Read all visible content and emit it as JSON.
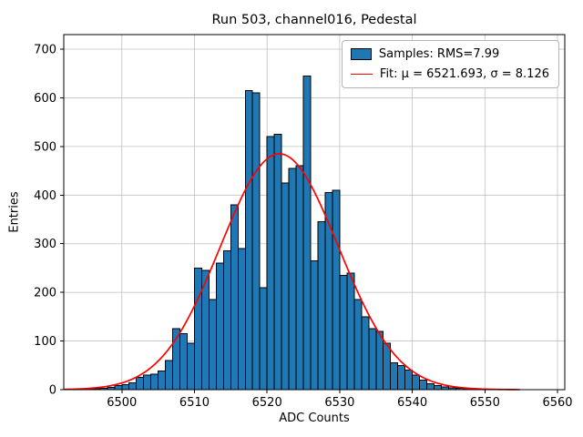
{
  "chart_data": {
    "type": "bar",
    "subtype": "histogram",
    "title": "Run 503, channel016, Pedestal",
    "xlabel": "ADC Counts",
    "ylabel": "Entries",
    "xlim": [
      6492,
      6561
    ],
    "ylim": [
      0,
      730
    ],
    "xticks": [
      6500,
      6510,
      6520,
      6530,
      6540,
      6550,
      6560
    ],
    "yticks": [
      0,
      100,
      200,
      300,
      400,
      500,
      600,
      700
    ],
    "grid": true,
    "grid_color": "#c0c0c0",
    "bin_start": 6495,
    "bin_width": 1,
    "bin_heights": [
      1,
      2,
      3,
      5,
      8,
      10,
      14,
      25,
      30,
      32,
      38,
      60,
      125,
      115,
      95,
      250,
      245,
      185,
      260,
      285,
      380,
      290,
      615,
      610,
      210,
      520,
      525,
      425,
      455,
      460,
      645,
      265,
      345,
      405,
      410,
      235,
      240,
      185,
      150,
      125,
      120,
      95,
      55,
      50,
      40,
      30,
      20,
      12,
      8,
      6,
      4,
      3,
      2,
      1,
      1
    ],
    "bar_color": "#1f77b4",
    "bar_edge_color": "#000000",
    "fit": {
      "mu": 6521.693,
      "sigma": 8.126,
      "amplitude": 485,
      "color": "#ff0000"
    },
    "legend": {
      "position": "upper right",
      "entries": [
        {
          "type": "patch",
          "label": "Samples: RMS=7.99",
          "color": "#1f77b4"
        },
        {
          "type": "line",
          "label": "Fit: μ = 6521.693, σ = 8.126",
          "color": "#ff0000"
        }
      ]
    }
  }
}
